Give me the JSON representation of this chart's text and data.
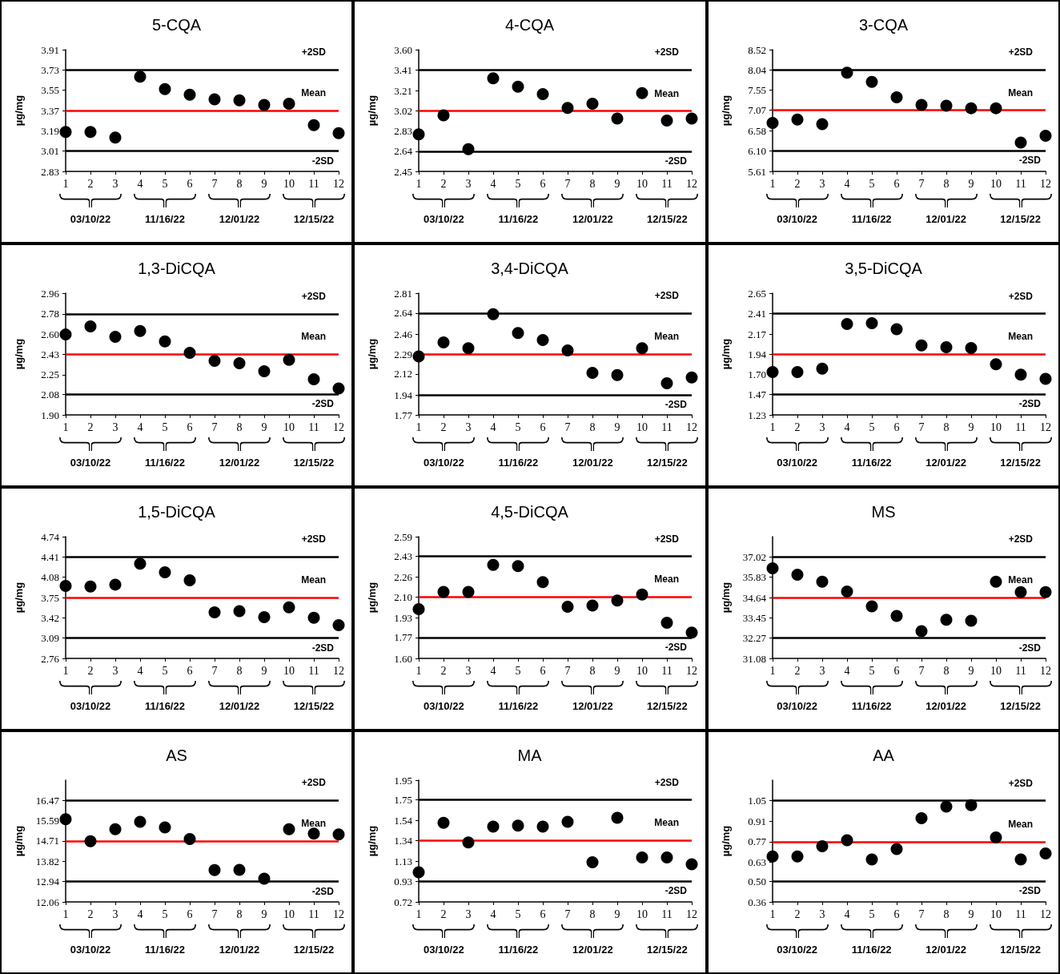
{
  "chart_data": [
    {
      "type": "scatter",
      "title": "5-CQA",
      "ylabel": "µg/mg",
      "x": [
        1,
        2,
        3,
        4,
        5,
        6,
        7,
        8,
        9,
        10,
        11,
        12
      ],
      "xlim": [
        1,
        12
      ],
      "xticks": [
        1,
        2,
        3,
        4,
        5,
        6,
        7,
        8,
        9,
        10,
        11,
        12
      ],
      "ylim": [
        2.83,
        3.91
      ],
      "yticks": [
        2.83,
        3.01,
        3.19,
        3.37,
        3.55,
        3.73,
        3.91
      ],
      "marker": "circle",
      "color": "#000000",
      "values": [
        3.18,
        3.18,
        3.13,
        3.67,
        3.56,
        3.51,
        3.47,
        3.46,
        3.42,
        3.43,
        3.24,
        3.17
      ],
      "ref_lines": [
        {
          "axis": "y",
          "value": 3.73,
          "label": "+2SD",
          "color": "#000000"
        },
        {
          "axis": "y",
          "value": 3.37,
          "label": "Mean",
          "color": "#ff0000"
        },
        {
          "axis": "y",
          "value": 3.01,
          "label": "-2SD",
          "color": "#000000"
        }
      ],
      "annotations": [
        "03/10/22",
        "11/16/22",
        "12/01/22",
        "12/15/22"
      ]
    },
    {
      "type": "scatter",
      "title": "4-CQA",
      "ylabel": "µg/mg",
      "x": [
        1,
        2,
        3,
        4,
        5,
        6,
        7,
        8,
        9,
        10,
        11,
        12
      ],
      "xlim": [
        1,
        12
      ],
      "xticks": [
        1,
        2,
        3,
        4,
        5,
        6,
        7,
        8,
        9,
        10,
        11,
        12
      ],
      "ylim": [
        2.45,
        3.6
      ],
      "yticks": [
        2.45,
        2.64,
        2.83,
        3.02,
        3.21,
        3.41,
        {
          "value": 3.6,
          "label": "3.60"
        }
      ],
      "marker": "circle",
      "color": "#000000",
      "values": [
        2.8,
        2.98,
        2.66,
        3.33,
        3.25,
        3.18,
        3.05,
        3.09,
        2.95,
        3.19,
        2.93,
        2.95
      ],
      "ref_lines": [
        {
          "axis": "y",
          "value": 3.41,
          "label": "+2SD",
          "color": "#000000"
        },
        {
          "axis": "y",
          "value": 3.02,
          "label": "Mean",
          "color": "#ff0000"
        },
        {
          "axis": "y",
          "value": 2.64,
          "label": "-2SD",
          "color": "#000000"
        }
      ],
      "annotations": [
        "03/10/22",
        "11/16/22",
        "12/01/22",
        "12/15/22"
      ]
    },
    {
      "type": "scatter",
      "title": "3-CQA",
      "ylabel": "µg/mg",
      "x": [
        1,
        2,
        3,
        4,
        5,
        6,
        7,
        8,
        9,
        10,
        11,
        12
      ],
      "xlim": [
        1,
        12
      ],
      "xticks": [
        1,
        2,
        3,
        4,
        5,
        6,
        7,
        8,
        9,
        10,
        11,
        12
      ],
      "ylim": [
        5.61,
        8.52
      ],
      "yticks": [
        5.61,
        {
          "value": 6.1,
          "label": "6.10"
        },
        6.58,
        7.07,
        7.55,
        8.04,
        8.52
      ],
      "marker": "circle",
      "color": "#000000",
      "values": [
        6.77,
        6.85,
        6.74,
        7.97,
        7.75,
        7.38,
        7.2,
        7.18,
        7.12,
        7.12,
        6.3,
        6.46
      ],
      "ref_lines": [
        {
          "axis": "y",
          "value": 8.04,
          "label": "+2SD",
          "color": "#000000"
        },
        {
          "axis": "y",
          "value": 7.07,
          "label": "Mean",
          "color": "#ff0000"
        },
        {
          "axis": "y",
          "value": 6.1,
          "label": "-2SD",
          "color": "#000000"
        }
      ],
      "annotations": [
        "03/10/22",
        "11/16/22",
        "12/01/22",
        "12/15/22"
      ]
    },
    {
      "type": "scatter",
      "title": "1,3-DiCQA",
      "ylabel": "µg/mg",
      "x": [
        1,
        2,
        3,
        4,
        5,
        6,
        7,
        8,
        9,
        10,
        11,
        12
      ],
      "xlim": [
        1,
        12
      ],
      "xticks": [
        1,
        2,
        3,
        4,
        5,
        6,
        7,
        8,
        9,
        10,
        11,
        12
      ],
      "ylim": [
        1.9,
        2.96
      ],
      "yticks": [
        {
          "value": 1.9,
          "label": "1.90"
        },
        2.08,
        2.25,
        2.43,
        {
          "value": 2.6,
          "label": "2.60"
        },
        2.78,
        2.96
      ],
      "marker": "circle",
      "color": "#000000",
      "values": [
        2.6,
        2.67,
        2.58,
        2.63,
        2.54,
        2.44,
        2.37,
        2.35,
        2.28,
        2.38,
        2.21,
        2.13
      ],
      "ref_lines": [
        {
          "axis": "y",
          "value": 2.78,
          "label": "+2SD",
          "color": "#000000"
        },
        {
          "axis": "y",
          "value": 2.43,
          "label": "Mean",
          "color": "#ff0000"
        },
        {
          "axis": "y",
          "value": 2.08,
          "label": "-2SD",
          "color": "#000000"
        }
      ],
      "annotations": [
        "03/10/22",
        "11/16/22",
        "12/01/22",
        "12/15/22"
      ]
    },
    {
      "type": "scatter",
      "title": "3,4-DiCQA",
      "ylabel": "µg/mg",
      "x": [
        1,
        2,
        3,
        4,
        5,
        6,
        7,
        8,
        9,
        10,
        11,
        12
      ],
      "xlim": [
        1,
        12
      ],
      "xticks": [
        1,
        2,
        3,
        4,
        5,
        6,
        7,
        8,
        9,
        10,
        11,
        12
      ],
      "ylim": [
        1.77,
        2.81
      ],
      "yticks": [
        1.77,
        1.94,
        2.12,
        2.29,
        2.46,
        2.64,
        2.81
      ],
      "marker": "circle",
      "color": "#000000",
      "values": [
        2.27,
        2.39,
        2.34,
        2.63,
        2.47,
        2.41,
        2.32,
        2.13,
        2.11,
        2.34,
        2.04,
        2.09
      ],
      "ref_lines": [
        {
          "axis": "y",
          "value": 2.64,
          "label": "+2SD",
          "color": "#000000"
        },
        {
          "axis": "y",
          "value": 2.29,
          "label": "Mean",
          "color": "#ff0000"
        },
        {
          "axis": "y",
          "value": 1.94,
          "label": "-2SD",
          "color": "#000000"
        }
      ],
      "annotations": [
        "03/10/22",
        "11/16/22",
        "12/01/22",
        "12/15/22"
      ]
    },
    {
      "type": "scatter",
      "title": "3,5-DiCQA",
      "ylabel": "µg/mg",
      "x": [
        1,
        2,
        3,
        4,
        5,
        6,
        7,
        8,
        9,
        10,
        11,
        12
      ],
      "xlim": [
        1,
        12
      ],
      "xticks": [
        1,
        2,
        3,
        4,
        5,
        6,
        7,
        8,
        9,
        10,
        11,
        12
      ],
      "ylim": [
        1.23,
        2.65
      ],
      "yticks": [
        1.23,
        1.47,
        {
          "value": 1.7,
          "label": "1.70"
        },
        1.94,
        2.17,
        2.41,
        2.65
      ],
      "marker": "circle",
      "color": "#000000",
      "values": [
        1.73,
        1.73,
        1.77,
        2.29,
        2.3,
        2.23,
        2.04,
        2.02,
        2.01,
        1.82,
        1.7,
        1.65
      ],
      "ref_lines": [
        {
          "axis": "y",
          "value": 2.41,
          "label": "+2SD",
          "color": "#000000"
        },
        {
          "axis": "y",
          "value": 1.94,
          "label": "Mean",
          "color": "#ff0000"
        },
        {
          "axis": "y",
          "value": 1.47,
          "label": "-2SD",
          "color": "#000000"
        }
      ],
      "annotations": [
        "03/10/22",
        "11/16/22",
        "12/01/22",
        "12/15/22"
      ]
    },
    {
      "type": "scatter",
      "title": "1,5-DiCQA",
      "ylabel": "µg/mg",
      "x": [
        1,
        2,
        3,
        4,
        5,
        6,
        7,
        8,
        9,
        10,
        11,
        12
      ],
      "xlim": [
        1,
        12
      ],
      "xticks": [
        1,
        2,
        3,
        4,
        5,
        6,
        7,
        8,
        9,
        10,
        11,
        12
      ],
      "ylim": [
        2.76,
        4.74
      ],
      "yticks": [
        2.76,
        3.09,
        3.42,
        3.75,
        4.08,
        4.41,
        4.74
      ],
      "marker": "circle",
      "color": "#000000",
      "values": [
        3.94,
        3.93,
        3.96,
        4.3,
        4.16,
        4.03,
        3.51,
        3.53,
        3.43,
        3.59,
        3.42,
        3.3
      ],
      "ref_lines": [
        {
          "axis": "y",
          "value": 4.41,
          "label": "+2SD",
          "color": "#000000"
        },
        {
          "axis": "y",
          "value": 3.75,
          "label": "Mean",
          "color": "#ff0000"
        },
        {
          "axis": "y",
          "value": 3.09,
          "label": "-2SD",
          "color": "#000000"
        }
      ],
      "annotations": [
        "03/10/22",
        "11/16/22",
        "12/01/22",
        "12/15/22"
      ]
    },
    {
      "type": "scatter",
      "title": "4,5-DiCQA",
      "ylabel": "µg/mg",
      "x": [
        1,
        2,
        3,
        4,
        5,
        6,
        7,
        8,
        9,
        10,
        11,
        12
      ],
      "xlim": [
        1,
        12
      ],
      "xticks": [
        1,
        2,
        3,
        4,
        5,
        6,
        7,
        8,
        9,
        10,
        11,
        12
      ],
      "ylim": [
        1.6,
        2.59
      ],
      "yticks": [
        {
          "value": 1.6,
          "label": "1.60"
        },
        1.77,
        1.93,
        {
          "value": 2.1,
          "label": "2.10"
        },
        2.26,
        2.43,
        2.59
      ],
      "marker": "circle",
      "color": "#000000",
      "values": [
        2.0,
        2.14,
        2.14,
        2.36,
        2.35,
        2.22,
        2.02,
        2.03,
        2.07,
        2.12,
        1.89,
        1.81
      ],
      "ref_lines": [
        {
          "axis": "y",
          "value": 2.43,
          "label": "+2SD",
          "color": "#000000"
        },
        {
          "axis": "y",
          "value": 2.1,
          "label": "Mean",
          "color": "#ff0000"
        },
        {
          "axis": "y",
          "value": 1.77,
          "label": "-2SD",
          "color": "#000000"
        }
      ],
      "annotations": [
        "03/10/22",
        "11/16/22",
        "12/01/22",
        "12/15/22"
      ]
    },
    {
      "type": "scatter",
      "title": "MS",
      "ylabel": "µg/mg",
      "x": [
        1,
        2,
        3,
        4,
        5,
        6,
        7,
        8,
        9,
        10,
        11,
        12
      ],
      "xlim": [
        1,
        12
      ],
      "xticks": [
        1,
        2,
        3,
        4,
        5,
        6,
        7,
        8,
        9,
        10,
        11,
        12
      ],
      "ylim": [
        31.08,
        38.21
      ],
      "yticks": [
        31.08,
        32.27,
        33.45,
        34.64,
        35.83,
        37.02
      ],
      "marker": "circle",
      "color": "#000000",
      "values": [
        36.36,
        35.98,
        35.57,
        35.0,
        34.13,
        33.57,
        32.67,
        33.34,
        33.29,
        35.57,
        34.96,
        34.96
      ],
      "ref_lines": [
        {
          "axis": "y",
          "value": 37.02,
          "label": "+2SD",
          "color": "#000000"
        },
        {
          "axis": "y",
          "value": 34.64,
          "label": "Mean",
          "color": "#ff0000"
        },
        {
          "axis": "y",
          "value": 32.27,
          "label": "-2SD",
          "color": "#000000"
        }
      ],
      "annotations": [
        "03/10/22",
        "11/16/22",
        "12/01/22",
        "12/15/22"
      ]
    },
    {
      "type": "scatter",
      "title": "AS",
      "ylabel": "µg/mg",
      "x": [
        1,
        2,
        3,
        4,
        5,
        6,
        7,
        8,
        9,
        10,
        11,
        12
      ],
      "xlim": [
        1,
        12
      ],
      "xticks": [
        1,
        2,
        3,
        4,
        5,
        6,
        7,
        8,
        9,
        10,
        11,
        12
      ],
      "ylim": [
        12.06,
        17.35
      ],
      "yticks": [
        12.06,
        12.94,
        13.82,
        14.71,
        15.59,
        16.47
      ],
      "marker": "circle",
      "color": "#000000",
      "values": [
        15.65,
        14.7,
        15.22,
        15.54,
        15.3,
        14.79,
        13.44,
        13.45,
        13.07,
        15.22,
        15.03,
        14.99
      ],
      "ref_lines": [
        {
          "axis": "y",
          "value": 16.47,
          "label": "+2SD",
          "color": "#000000"
        },
        {
          "axis": "y",
          "value": 14.71,
          "label": "Mean",
          "color": "#ff0000"
        },
        {
          "axis": "y",
          "value": 12.94,
          "label": "-2SD",
          "color": "#000000"
        }
      ],
      "annotations": [
        "03/10/22",
        "11/16/22",
        "12/01/22",
        "12/15/22"
      ]
    },
    {
      "type": "scatter",
      "title": "MA",
      "ylabel": "µg/mg",
      "x": [
        1,
        2,
        3,
        4,
        5,
        6,
        7,
        8,
        9,
        10,
        11,
        12
      ],
      "xlim": [
        1,
        12
      ],
      "xticks": [
        1,
        2,
        3,
        4,
        5,
        6,
        7,
        8,
        9,
        10,
        11,
        12
      ],
      "ylim": [
        0.72,
        1.95
      ],
      "yticks": [
        0.72,
        0.93,
        1.13,
        1.34,
        1.54,
        1.75,
        1.95
      ],
      "marker": "circle",
      "color": "#000000",
      "values": [
        1.02,
        1.52,
        1.32,
        1.48,
        1.49,
        1.48,
        1.53,
        1.12,
        1.57,
        1.17,
        1.17,
        1.1
      ],
      "ref_lines": [
        {
          "axis": "y",
          "value": 1.75,
          "label": "+2SD",
          "color": "#000000"
        },
        {
          "axis": "y",
          "value": 1.34,
          "label": "Mean",
          "color": "#ff0000"
        },
        {
          "axis": "y",
          "value": 0.93,
          "label": "-2SD",
          "color": "#000000"
        }
      ],
      "annotations": [
        "03/10/22",
        "11/16/22",
        "12/01/22",
        "12/15/22"
      ]
    },
    {
      "type": "scatter",
      "title": "AA",
      "ylabel": "µg/mg",
      "x": [
        1,
        2,
        3,
        4,
        5,
        6,
        7,
        8,
        9,
        10,
        11,
        12
      ],
      "xlim": [
        1,
        12
      ],
      "xticks": [
        1,
        2,
        3,
        4,
        5,
        6,
        7,
        8,
        9,
        10,
        11,
        12
      ],
      "ylim": [
        0.36,
        1.19
      ],
      "yticks": [
        0.36,
        {
          "value": 0.5,
          "label": "0.50"
        },
        0.63,
        0.77,
        0.91,
        1.05
      ],
      "marker": "circle",
      "color": "#000000",
      "values": [
        0.67,
        0.67,
        0.74,
        0.78,
        0.65,
        0.72,
        0.93,
        1.01,
        1.02,
        0.8,
        0.65,
        0.69
      ],
      "ref_lines": [
        {
          "axis": "y",
          "value": 1.05,
          "label": "+2SD",
          "color": "#000000"
        },
        {
          "axis": "y",
          "value": 0.77,
          "label": "Mean",
          "color": "#ff0000"
        },
        {
          "axis": "y",
          "value": 0.5,
          "label": "-2SD",
          "color": "#000000"
        }
      ],
      "annotations": [
        "03/10/22",
        "11/16/22",
        "12/01/22",
        "12/15/22"
      ]
    }
  ]
}
